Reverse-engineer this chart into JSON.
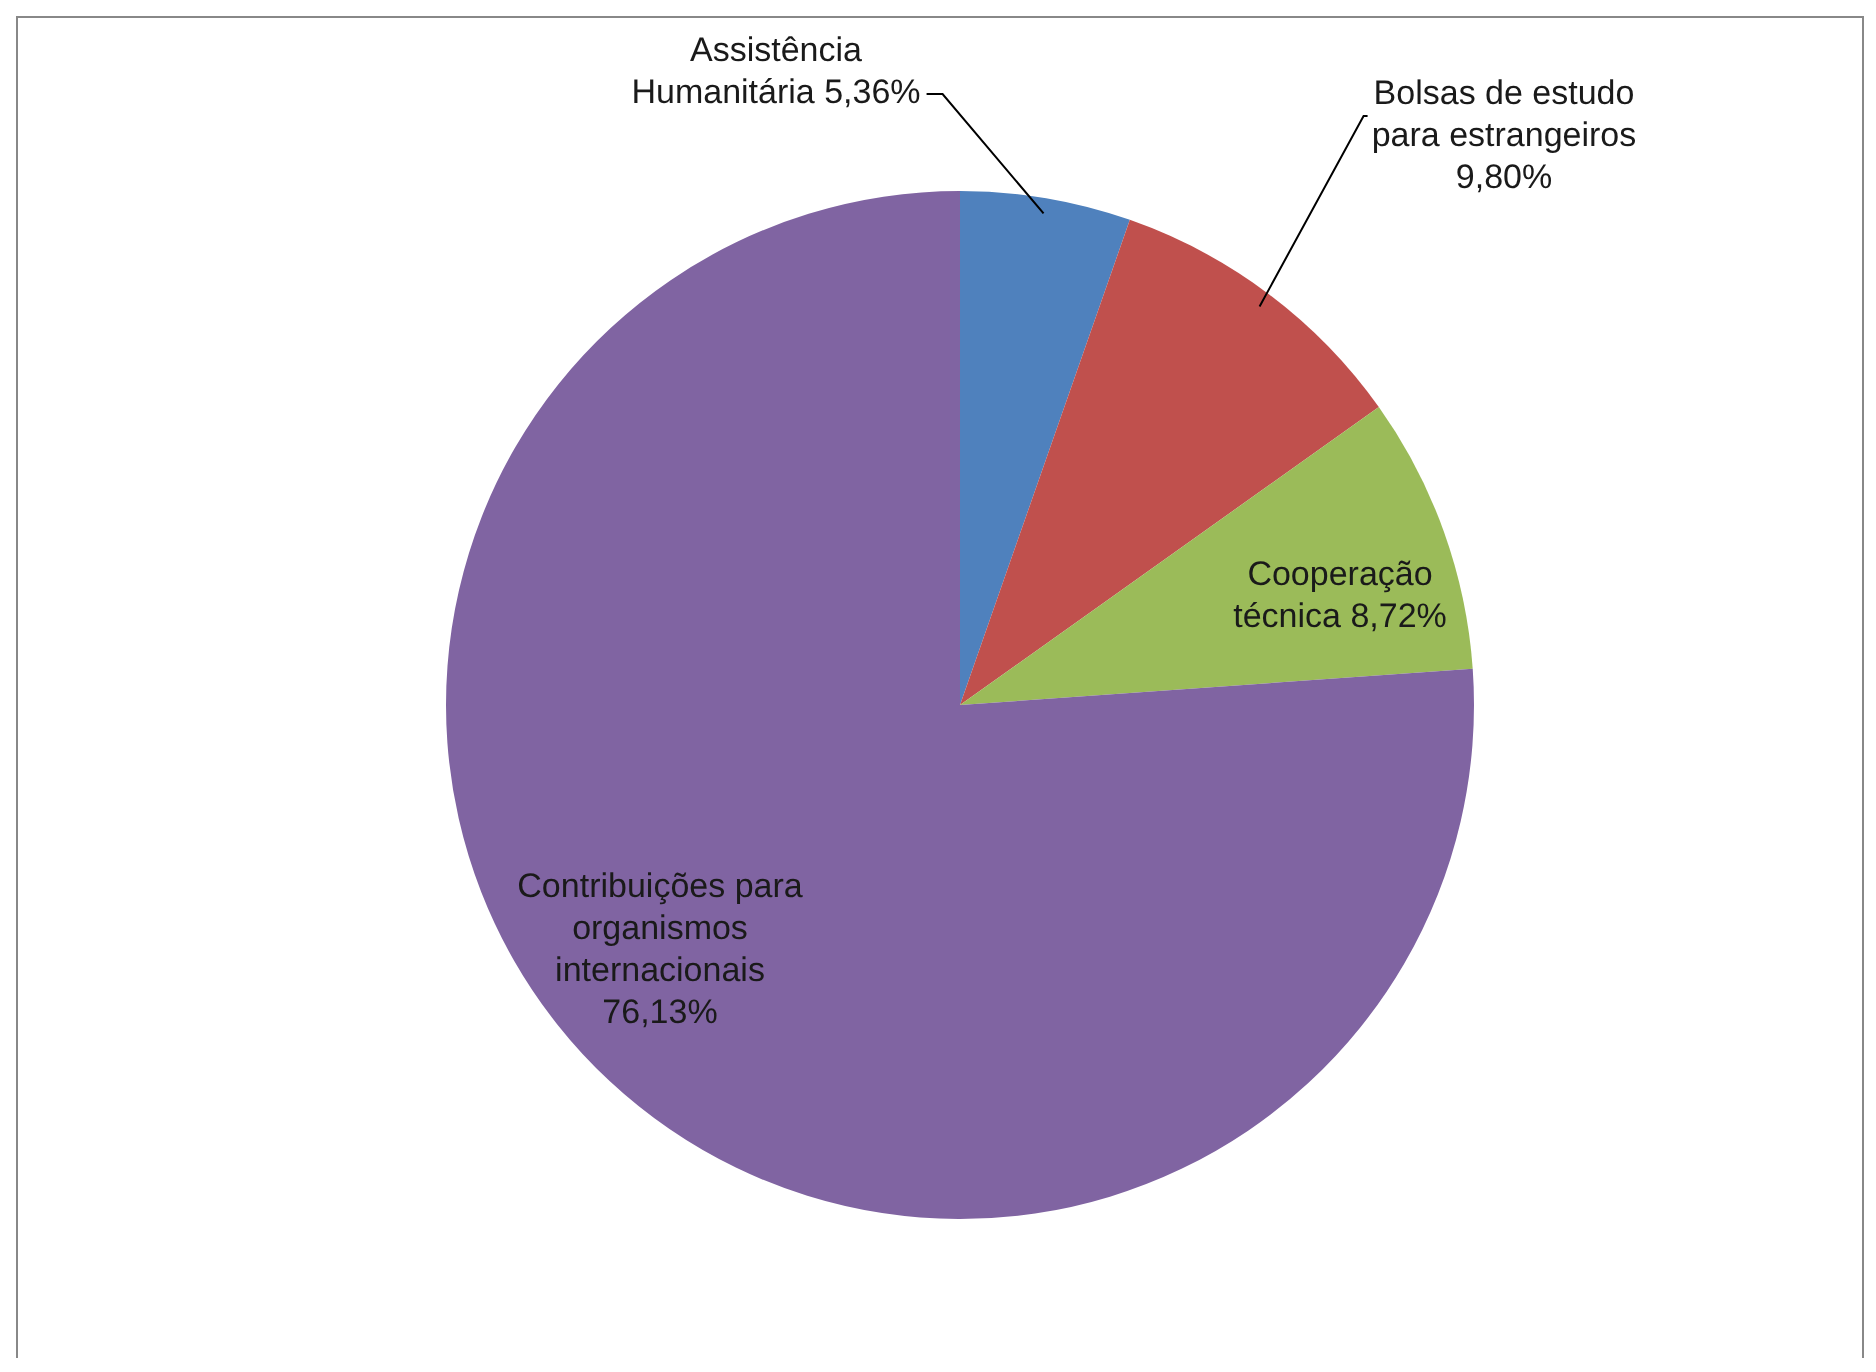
{
  "chart_data": {
    "type": "pie",
    "categories": [
      "Assistência Humanitária",
      "Bolsas de estudo para estrangeiros",
      "Cooperação técnica",
      "Contribuições para organismos internacionais"
    ],
    "values": [
      5.36,
      9.8,
      8.72,
      76.13
    ],
    "value_labels": [
      "5,36%",
      "9,80%",
      "8,72%",
      "76,13%"
    ],
    "colors": [
      "#4f81bd",
      "#c0504d",
      "#9bbb59",
      "#8064a2"
    ],
    "legend": false
  }
}
